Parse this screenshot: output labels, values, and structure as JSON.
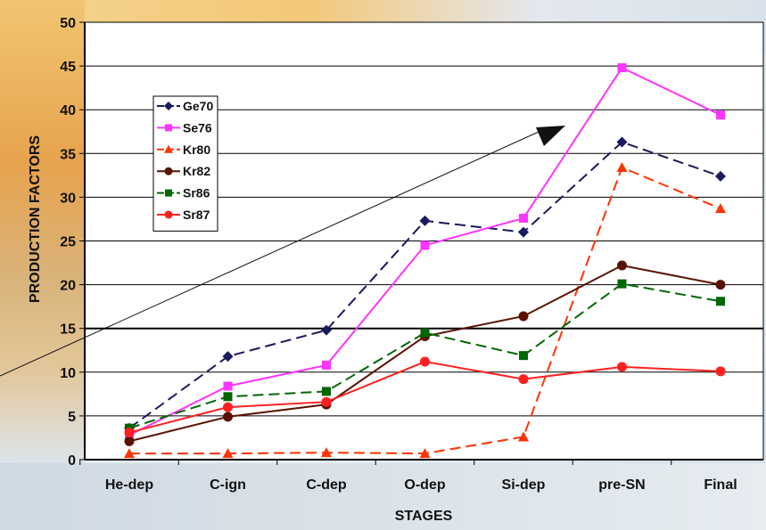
{
  "chart_data": {
    "type": "line",
    "xlabel": "STAGES",
    "ylabel": "PRODUCTION FACTORS",
    "categories": [
      "He-dep",
      "C-ign",
      "C-dep",
      "O-dep",
      "Si-dep",
      "pre-SN",
      "Final"
    ],
    "ylim": [
      0,
      50
    ],
    "yticks": [
      0,
      5,
      10,
      15,
      20,
      25,
      30,
      35,
      40,
      45,
      50
    ],
    "grid": true,
    "legend_position": "upper-left inside plot",
    "series": [
      {
        "name": "Ge70",
        "color": "#1a1a5e",
        "marker": "diamond",
        "dash": true,
        "values": [
          3.6,
          11.8,
          14.8,
          27.3,
          26.0,
          36.3,
          32.4
        ]
      },
      {
        "name": "Se76",
        "color": "#ff33ff",
        "marker": "square",
        "dash": false,
        "values": [
          2.8,
          8.4,
          10.8,
          24.5,
          27.6,
          44.8,
          39.4
        ]
      },
      {
        "name": "Kr80",
        "color": "#ff3300",
        "marker": "triangle",
        "dash": true,
        "values": [
          0.7,
          0.7,
          0.8,
          0.7,
          2.6,
          33.4,
          28.7
        ]
      },
      {
        "name": "Kr82",
        "color": "#5a1200",
        "marker": "circle",
        "dash": false,
        "values": [
          2.1,
          4.9,
          6.3,
          14.1,
          16.4,
          22.2,
          20.0
        ]
      },
      {
        "name": "Sr86",
        "color": "#006600",
        "marker": "square",
        "dash": true,
        "values": [
          3.6,
          7.2,
          7.8,
          14.5,
          11.9,
          20.1,
          18.1
        ]
      },
      {
        "name": "Sr87",
        "color": "#ff2020",
        "marker": "circle",
        "dash": false,
        "values": [
          3.1,
          6.0,
          6.6,
          11.2,
          9.2,
          10.6,
          10.1
        ]
      }
    ]
  }
}
